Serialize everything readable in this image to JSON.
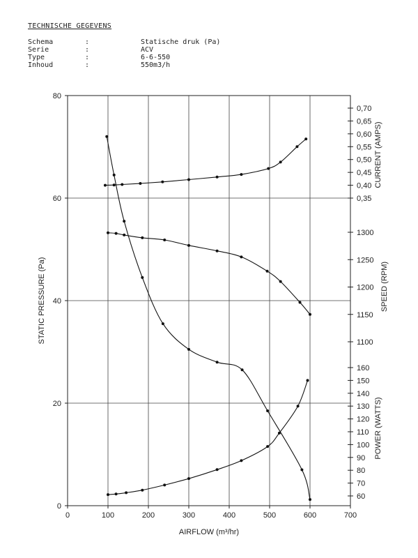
{
  "spec": {
    "title": "TECHNISCHE GEGEVENS",
    "rows": [
      {
        "label": "Schema",
        "sep": ":",
        "value": "Statische druk (Pa)"
      },
      {
        "label": "Serie",
        "sep": ":",
        "value": "ACV"
      },
      {
        "label": "Type",
        "sep": ":",
        "value": "6-6-550"
      },
      {
        "label": "Inhoud",
        "sep": ":",
        "value": "550m3/h"
      }
    ]
  },
  "chart_data": {
    "type": "line",
    "xlabel": "AIRFLOW (m³/hr)",
    "xlim": [
      0,
      700
    ],
    "x_ticks": [
      "0",
      "100",
      "200",
      "300",
      "400",
      "500",
      "600",
      "700"
    ],
    "grid": true,
    "axes": {
      "pressure": {
        "label": "STATIC PRESSURE (Pa)",
        "lim": [
          0,
          80
        ],
        "ticks": [
          "0",
          "20",
          "40",
          "60",
          "80"
        ]
      },
      "current": {
        "label": "CURRENT (AMPS)",
        "lim": [
          0.35,
          0.7
        ],
        "ticks": [
          "0,35",
          "0,40",
          "0,45",
          "0,50",
          "0,55",
          "0,60",
          "0,65",
          "0,70"
        ]
      },
      "speed": {
        "label": "SPEED (RPM)",
        "lim": [
          1100,
          1300
        ],
        "ticks": [
          "1100",
          "1150",
          "1200",
          "1250",
          "1300"
        ]
      },
      "power": {
        "label": "POWER (WATTS)",
        "lim": [
          60,
          160
        ],
        "ticks": [
          "60",
          "70",
          "80",
          "90",
          "100",
          "110",
          "120",
          "130",
          "140",
          "150",
          "160"
        ]
      }
    },
    "series": [
      {
        "axis": "pressure",
        "x": [
          97,
          115,
          140,
          185,
          236,
          300,
          370,
          432,
          495,
          580,
          600
        ],
        "y": [
          72,
          64.5,
          55.5,
          44.5,
          35.5,
          30.5,
          28,
          26.5,
          18.5,
          7,
          1.2
        ]
      },
      {
        "axis": "current",
        "x": [
          93,
          115,
          135,
          180,
          235,
          300,
          370,
          430,
          497,
          527,
          568,
          590
        ],
        "y": [
          0.4,
          0.401,
          0.403,
          0.407,
          0.413,
          0.422,
          0.432,
          0.442,
          0.465,
          0.49,
          0.55,
          0.58
        ]
      },
      {
        "axis": "speed",
        "x": [
          100,
          120,
          140,
          185,
          240,
          300,
          370,
          430,
          494,
          527,
          575,
          600
        ],
        "y": [
          1299,
          1298,
          1295,
          1290,
          1286,
          1276,
          1266,
          1255,
          1229,
          1210,
          1172,
          1150
        ]
      },
      {
        "axis": "power",
        "x": [
          100,
          120,
          145,
          185,
          240,
          300,
          370,
          430,
          495,
          524,
          570,
          594
        ],
        "y": [
          61,
          61.5,
          62.5,
          64.5,
          68.5,
          73.5,
          80.5,
          87.5,
          98.5,
          109,
          130,
          150
        ]
      }
    ]
  }
}
